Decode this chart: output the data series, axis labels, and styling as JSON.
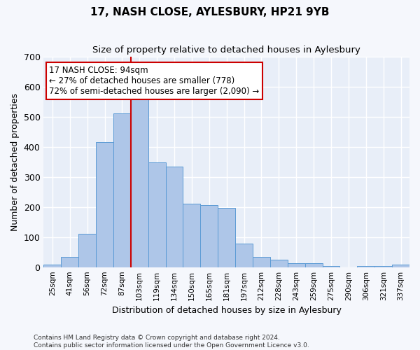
{
  "title": "17, NASH CLOSE, AYLESBURY, HP21 9YB",
  "subtitle": "Size of property relative to detached houses in Aylesbury",
  "xlabel": "Distribution of detached houses by size in Aylesbury",
  "ylabel": "Number of detached properties",
  "categories": [
    "25sqm",
    "41sqm",
    "56sqm",
    "72sqm",
    "87sqm",
    "103sqm",
    "119sqm",
    "134sqm",
    "150sqm",
    "165sqm",
    "181sqm",
    "197sqm",
    "212sqm",
    "228sqm",
    "243sqm",
    "259sqm",
    "275sqm",
    "290sqm",
    "306sqm",
    "321sqm",
    "337sqm"
  ],
  "values": [
    8,
    35,
    112,
    415,
    510,
    580,
    348,
    333,
    210,
    205,
    198,
    78,
    35,
    25,
    13,
    13,
    5,
    0,
    5,
    5,
    8
  ],
  "bar_color": "#aec6e8",
  "bar_edge_color": "#5b9bd5",
  "vline_x": 4.5,
  "annotation_text_line1": "17 NASH CLOSE: 94sqm",
  "annotation_text_line2": "← 27% of detached houses are smaller (778)",
  "annotation_text_line3": "72% of semi-detached houses are larger (2,090) →",
  "vline_color": "#cc0000",
  "annotation_box_facecolor": "#ffffff",
  "annotation_box_edgecolor": "#cc0000",
  "bg_color": "#e8eef8",
  "grid_color": "#ffffff",
  "fig_facecolor": "#f5f7fc",
  "footer_line1": "Contains HM Land Registry data © Crown copyright and database right 2024.",
  "footer_line2": "Contains public sector information licensed under the Open Government Licence v3.0.",
  "ylim": [
    0,
    700
  ],
  "yticks": [
    0,
    100,
    200,
    300,
    400,
    500,
    600,
    700
  ]
}
